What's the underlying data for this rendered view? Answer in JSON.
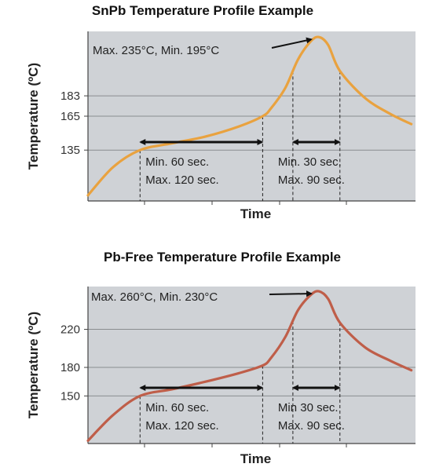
{
  "colors": {
    "plot_background": "#cfd2d6",
    "grid": "#8a8d90",
    "sn_pb_curve": "#e9a23f",
    "pb_free_curve": "#bf5e49",
    "annotation": "#111111"
  },
  "chart_data": [
    {
      "type": "line",
      "title": "SnPb Temperature Profile Example",
      "xlabel": "Time",
      "ylabel": "Temperature (ºC)",
      "y_ticks": [
        135,
        165,
        183
      ],
      "ylim": [
        90,
        240
      ],
      "xlim": [
        0,
        390
      ],
      "grid": true,
      "series": [
        {
          "x": [
            0,
            30,
            62,
            100,
            140,
            180,
            208,
            218,
            235,
            250,
            265,
            275,
            286,
            300,
            330,
            360,
            385
          ],
          "y": [
            95,
            120,
            135,
            141,
            147,
            156,
            165,
            172,
            190,
            215,
            231,
            235,
            228,
            205,
            181,
            167,
            158
          ]
        }
      ],
      "spans": [
        {
          "from": 62,
          "to": 208,
          "line1": "Min. 60 sec.",
          "line2": "Max. 120 sec."
        },
        {
          "from": 244,
          "to": 300,
          "line1": "Min. 30 sec.",
          "line2": "Max. 90 sec."
        }
      ],
      "reference_levels": [
        135,
        165,
        183
      ],
      "peak_note": "Max. 235°C, Min. 195°C",
      "peak_x": 275,
      "peak_y": 235
    },
    {
      "type": "line",
      "title": "Pb-Free Temperature Profile Example",
      "xlabel": "Time",
      "ylabel": "Temperature (ºC)",
      "y_ticks": [
        150,
        180,
        220
      ],
      "ylim": [
        100,
        265
      ],
      "xlim": [
        0,
        390
      ],
      "grid": true,
      "series": [
        {
          "x": [
            0,
            30,
            62,
            100,
            140,
            180,
            208,
            218,
            235,
            250,
            265,
            275,
            286,
            300,
            330,
            360,
            385
          ],
          "y": [
            103,
            130,
            150,
            157,
            165,
            174,
            182,
            190,
            212,
            240,
            256,
            260,
            252,
            227,
            201,
            187,
            177
          ]
        }
      ],
      "spans": [
        {
          "from": 62,
          "to": 208,
          "line1": "Min. 60 sec.",
          "line2": "Max. 120 sec."
        },
        {
          "from": 244,
          "to": 300,
          "line1": "Min 30 sec.",
          "line2": "Max. 90 sec."
        }
      ],
      "reference_levels": [
        150,
        180,
        220
      ],
      "peak_note": "Max. 260°C, Min. 230°C",
      "peak_x": 275,
      "peak_y": 260
    }
  ]
}
